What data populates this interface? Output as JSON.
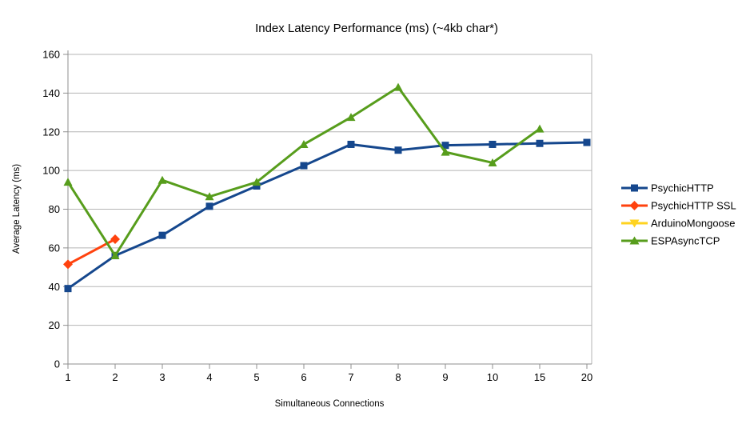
{
  "chart_data": {
    "type": "line",
    "title": "Index Latency Performance (ms) (~4kb char*)",
    "xlabel": "Simultaneous Connections",
    "ylabel": "Average Latency (ms)",
    "categories": [
      "1",
      "2",
      "3",
      "4",
      "5",
      "6",
      "7",
      "8",
      "9",
      "10",
      "15",
      "20"
    ],
    "ylim": [
      0,
      160
    ],
    "ytick_step": 20,
    "grid": "horizontal",
    "legend_position": "right",
    "series": [
      {
        "name": "PsychicHTTP",
        "color": "#15478D",
        "marker": "square",
        "values": [
          39,
          56,
          66.5,
          81.5,
          92,
          102.5,
          113.5,
          110.5,
          113,
          113.5,
          114,
          114.5
        ]
      },
      {
        "name": "PsychicHTTP SSL",
        "color": "#FF420E",
        "marker": "diamond",
        "values": [
          51.5,
          64.5,
          null,
          null,
          null,
          null,
          null,
          null,
          null,
          null,
          null,
          null
        ]
      },
      {
        "name": "ArduinoMongoose",
        "color": "#FFD320",
        "marker": "triangle-down",
        "values": [
          null,
          null,
          null,
          null,
          null,
          null,
          null,
          null,
          null,
          null,
          null,
          null
        ]
      },
      {
        "name": "ESPAsyncTCP",
        "color": "#579D1C",
        "marker": "triangle-up",
        "values": [
          94,
          56,
          95,
          86.5,
          94,
          113.5,
          127.5,
          143,
          109.5,
          104,
          121.5,
          null
        ]
      }
    ]
  },
  "colors": {
    "background": "#FFFFFF",
    "gridline": "#B5B5B5",
    "axis": "#8F8F8F",
    "text": "#000000"
  }
}
